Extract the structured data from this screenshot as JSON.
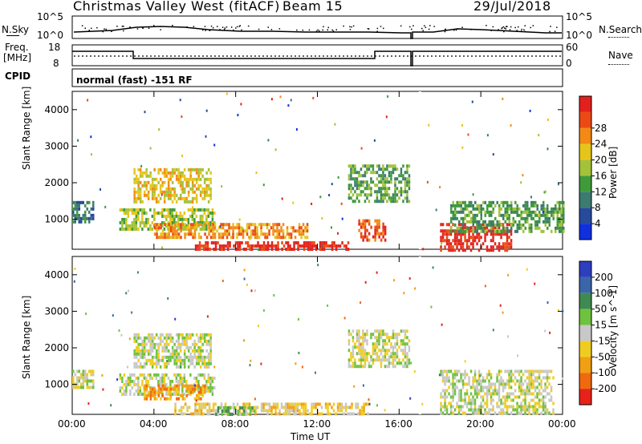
{
  "header": {
    "title": "Christmas Valley West (fitACF)",
    "beam": "Beam 15",
    "date": "29/Jul/2018"
  },
  "summary": {
    "nsky_label": "N.Sky",
    "nsky_ticks": [
      "10^5",
      "10^0"
    ],
    "nsearch_label": "N.Search",
    "nsearch_ticks": [
      "10^5",
      "10^0"
    ],
    "freq_label_line1": "Freq.",
    "freq_label_line2": "[MHz]",
    "freq_ticks": [
      "18",
      "8"
    ],
    "nave_label": "Nave",
    "nave_ticks": [
      "60",
      "0"
    ],
    "cpid_label": "CPID",
    "cpid_text": "normal (fast) -151 RF"
  },
  "chart_data": [
    {
      "type": "heatmap",
      "name": "power",
      "ylabel": "Slant Range [km]",
      "ylim": [
        180,
        4500
      ],
      "yticks": [
        "1000",
        "2000",
        "3000",
        "4000"
      ],
      "ytick_values": [
        1000,
        2000,
        3000,
        4000
      ],
      "colorbar_label": "Power [dB]",
      "colorbar_ticks": [
        "4",
        "8",
        "12",
        "16",
        "20",
        "24",
        "28"
      ],
      "colorbar_colors": [
        "#1030e0",
        "#284a9a",
        "#3d7a72",
        "#3f9a3a",
        "#a3c23a",
        "#e6c51a",
        "#f28a15",
        "#ec4a14",
        "#e3211c"
      ],
      "echo_regions": [
        {
          "t0": 0.0,
          "t1": 1.0,
          "r0": 900,
          "r1": 1500,
          "level": 2
        },
        {
          "t0": 2.3,
          "t1": 7.0,
          "r0": 700,
          "r1": 1300,
          "level": 4
        },
        {
          "t0": 3.0,
          "t1": 6.8,
          "r0": 1500,
          "r1": 2400,
          "level": 5
        },
        {
          "t0": 4.0,
          "t1": 11.5,
          "r0": 500,
          "r1": 900,
          "level": 6
        },
        {
          "t0": 6.0,
          "t1": 13.5,
          "r0": 180,
          "r1": 400,
          "level": 8
        },
        {
          "t0": 13.5,
          "t1": 16.5,
          "r0": 1500,
          "r1": 2500,
          "level": 3
        },
        {
          "t0": 14.0,
          "t1": 15.3,
          "r0": 400,
          "r1": 1000,
          "level": 7
        },
        {
          "t0": 18.0,
          "t1": 21.5,
          "r0": 180,
          "r1": 900,
          "level": 8
        },
        {
          "t0": 18.5,
          "t1": 24.0,
          "r0": 700,
          "r1": 1500,
          "level": 3
        }
      ]
    },
    {
      "type": "heatmap",
      "name": "velocity",
      "ylabel": "Slant Range [km]",
      "ylim": [
        180,
        4500
      ],
      "yticks": [
        "1000",
        "2000",
        "3000",
        "4000"
      ],
      "ytick_values": [
        1000,
        2000,
        3000,
        4000
      ],
      "colorbar_label": "Velocity [m s^-1]",
      "colorbar_ticks": [
        "200",
        "100",
        "50",
        "15",
        "-15",
        "-50",
        "-100",
        "-200"
      ],
      "colorbar_colors": [
        "#2d3fbf",
        "#3a66a8",
        "#3f8a52",
        "#6fc23f",
        "#c8c8c8",
        "#f0cc20",
        "#f0a012",
        "#ef6a0e",
        "#e8221a"
      ],
      "echo_regions": [
        {
          "t0": 0.0,
          "t1": 1.0,
          "r0": 900,
          "r1": 1400,
          "level": 4
        },
        {
          "t0": 2.3,
          "t1": 7.0,
          "r0": 700,
          "r1": 1300,
          "level": 4
        },
        {
          "t0": 3.0,
          "t1": 6.8,
          "r0": 1500,
          "r1": 2400,
          "level": 4
        },
        {
          "t0": 3.5,
          "t1": 6.5,
          "r0": 600,
          "r1": 1000,
          "level": 6
        },
        {
          "t0": 5.0,
          "t1": 14.5,
          "r0": 180,
          "r1": 500,
          "level": 5
        },
        {
          "t0": 7.0,
          "t1": 9.0,
          "r0": 180,
          "r1": 400,
          "level": 3
        },
        {
          "t0": 13.5,
          "t1": 16.5,
          "r0": 1500,
          "r1": 2500,
          "level": 4
        },
        {
          "t0": 18.0,
          "t1": 23.5,
          "r0": 180,
          "r1": 1400,
          "level": 4
        }
      ]
    }
  ],
  "time_axis": {
    "xlabel": "Time UT",
    "ticks": [
      "00:00",
      "04:00",
      "08:00",
      "12:00",
      "16:00",
      "20:00",
      "00:00"
    ],
    "tick_hours": [
      0,
      4,
      8,
      12,
      16,
      20,
      24
    ]
  }
}
